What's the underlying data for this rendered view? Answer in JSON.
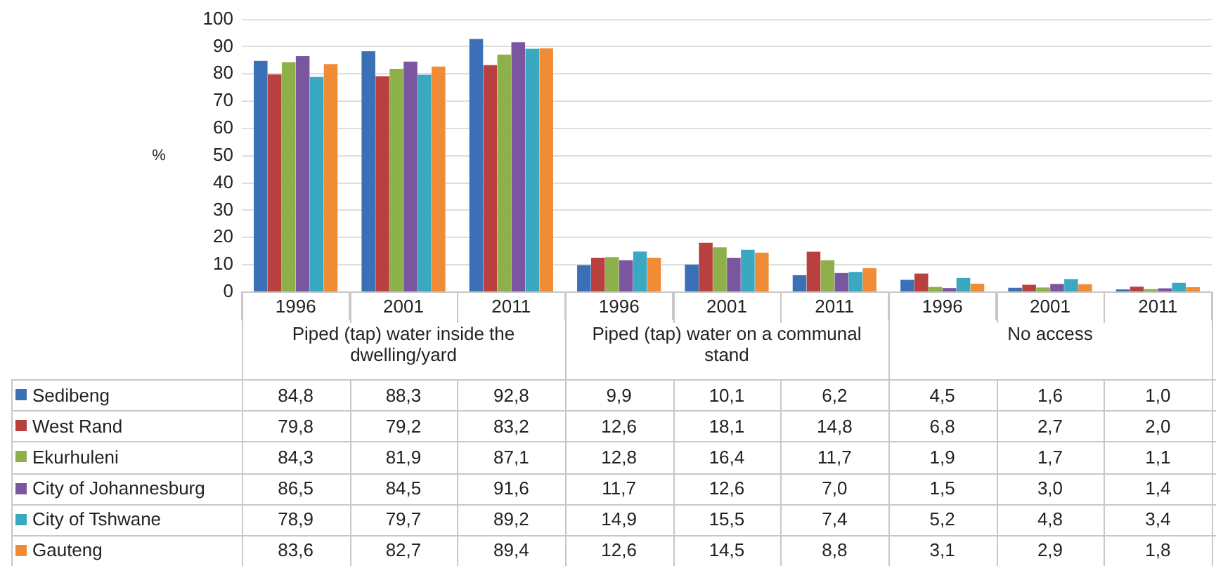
{
  "chart_data": {
    "type": "bar",
    "ylabel": "%",
    "categories": [
      "1996",
      "2001",
      "2011",
      "1996",
      "2001",
      "2011",
      "1996",
      "2001",
      "2011"
    ],
    "annotations": [
      "Piped (tap) water inside the dwelling/yard",
      "Piped (tap) water on a communal stand",
      "No access"
    ],
    "ylim": [
      0,
      100
    ],
    "yticks": [
      0,
      10,
      20,
      30,
      40,
      50,
      60,
      70,
      80,
      90,
      100
    ],
    "grid": "y",
    "legend": "bottom left",
    "series": [
      {
        "name": "Sedibeng",
        "color": "#3b6fb6",
        "values": [
          84.8,
          88.3,
          92.8,
          9.9,
          10.1,
          6.2,
          4.5,
          1.6,
          1.0
        ],
        "value_labels": [
          "84,8",
          "88,3",
          "92,8",
          "9,9",
          "10,1",
          "6,2",
          "4,5",
          "1,6",
          "1,0"
        ]
      },
      {
        "name": "West Rand",
        "color": "#b8413f",
        "values": [
          79.8,
          79.2,
          83.2,
          12.6,
          18.1,
          14.8,
          6.8,
          2.7,
          2.0
        ],
        "value_labels": [
          "79,8",
          "79,2",
          "83,2",
          "12,6",
          "18,1",
          "14,8",
          "6,8",
          "2,7",
          "2,0"
        ]
      },
      {
        "name": "Ekurhuleni",
        "color": "#8db04a",
        "values": [
          84.3,
          81.9,
          87.1,
          12.8,
          16.4,
          11.7,
          1.9,
          1.7,
          1.1
        ],
        "value_labels": [
          "84,3",
          "81,9",
          "87,1",
          "12,8",
          "16,4",
          "11,7",
          "1,9",
          "1,7",
          "1,1"
        ]
      },
      {
        "name": "City of Johannesburg",
        "color": "#7a56a0",
        "values": [
          86.5,
          84.5,
          91.6,
          11.7,
          12.6,
          7.0,
          1.5,
          3.0,
          1.4
        ],
        "value_labels": [
          "86,5",
          "84,5",
          "91,6",
          "11,7",
          "12,6",
          "7,0",
          "1,5",
          "3,0",
          "1,4"
        ]
      },
      {
        "name": "City of Tshwane",
        "color": "#3ba8c2",
        "values": [
          78.9,
          79.7,
          89.2,
          14.9,
          15.5,
          7.4,
          5.2,
          4.8,
          3.4
        ],
        "value_labels": [
          "78,9",
          "79,7",
          "89,2",
          "14,9",
          "15,5",
          "7,4",
          "5,2",
          "4,8",
          "3,4"
        ]
      },
      {
        "name": "Gauteng",
        "color": "#f08c36",
        "values": [
          83.6,
          82.7,
          89.4,
          12.6,
          14.5,
          8.8,
          3.1,
          2.9,
          1.8
        ],
        "value_labels": [
          "83,6",
          "82,7",
          "89,4",
          "12,6",
          "14,5",
          "8,8",
          "3,1",
          "2,9",
          "1,8"
        ]
      }
    ]
  }
}
